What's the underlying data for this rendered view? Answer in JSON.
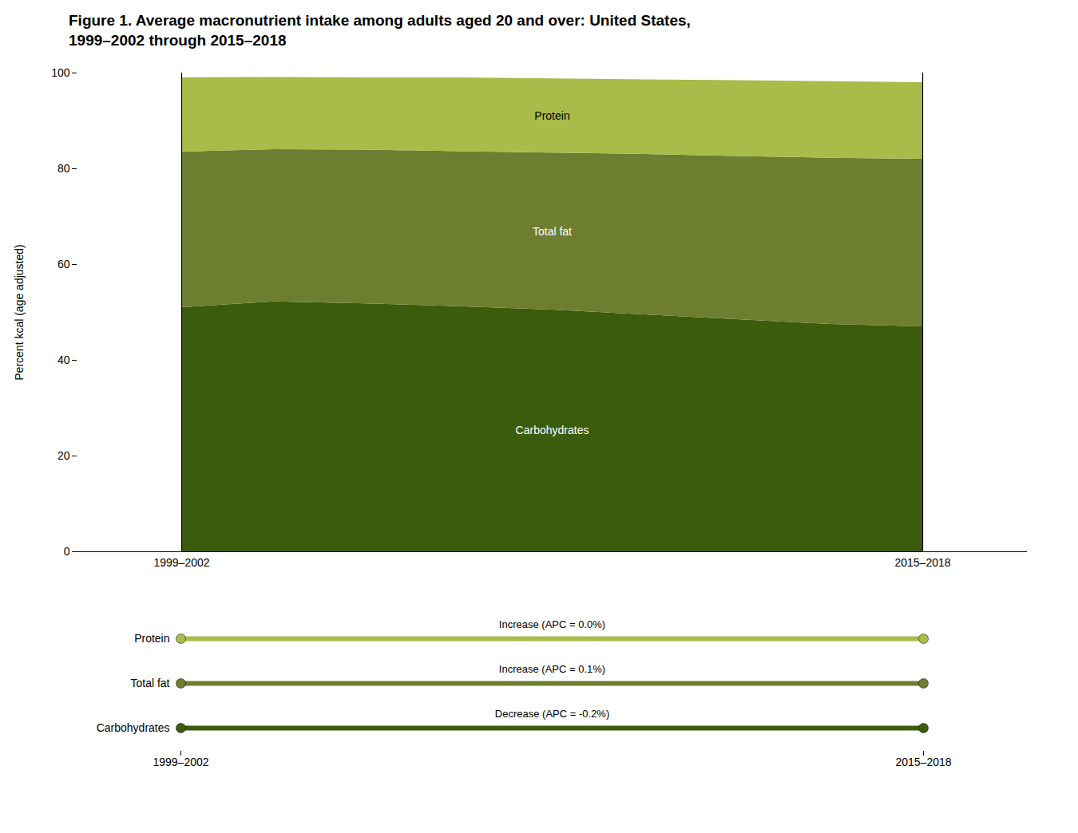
{
  "chart_data": [
    {
      "type": "area",
      "stacked": true,
      "title": "Figure 1. Average macronutrient intake among adults aged 20 and over: United States,\n1999–2002 through 2015–2018",
      "categories": [
        "1999–2002",
        null,
        null,
        null,
        null,
        null,
        null,
        null,
        "2015–2018"
      ],
      "ylabel": "Percent kcal (age adjusted)",
      "ylim": [
        0,
        100
      ],
      "yticks": [
        0,
        20,
        40,
        60,
        80,
        100
      ],
      "grid": false,
      "series": [
        {
          "name": "Carbohydrates",
          "color": "#3b5c0c",
          "values": [
            51.0,
            52.2,
            51.8,
            51.2,
            50.5,
            49.5,
            48.5,
            47.5,
            47.0
          ]
        },
        {
          "name": "Total fat",
          "color": "#6e7e30",
          "values": [
            32.5,
            31.8,
            32.1,
            32.4,
            32.8,
            33.5,
            34.1,
            34.7,
            35.0
          ]
        },
        {
          "name": "Protein",
          "color": "#a9bb48",
          "values": [
            15.5,
            15.1,
            15.1,
            15.4,
            15.5,
            15.6,
            15.8,
            16.0,
            16.0
          ]
        }
      ]
    },
    {
      "type": "trend_legend",
      "categories": [
        "Protein",
        "Total fat",
        "Carbohydrates"
      ],
      "colors": [
        "#a9bb48",
        "#6e7e30",
        "#3b5c0c"
      ],
      "annotations": [
        "Increase (APC = 0.0%)",
        "Increase (APC = 0.1%)",
        "Decrease (APC = -0.2%)"
      ],
      "x": [
        "1999–2002",
        "2015–2018"
      ]
    }
  ]
}
